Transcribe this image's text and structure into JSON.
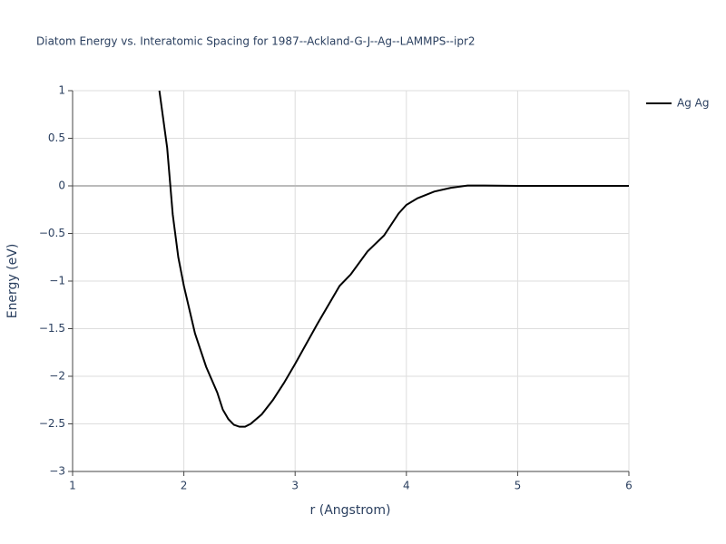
{
  "chart_data": {
    "type": "line",
    "title": "Diatom Energy vs. Interatomic Spacing for 1987--Ackland-G-J--Ag--LAMMPS--ipr2",
    "x_label": "r (Angstrom)",
    "y_label": "Energy (eV)",
    "x": [
      1.78,
      1.85,
      1.9,
      1.95,
      2.0,
      2.1,
      2.2,
      2.3,
      2.35,
      2.4,
      2.45,
      2.5,
      2.55,
      2.6,
      2.7,
      2.8,
      2.9,
      3.0,
      3.2,
      3.4,
      3.5,
      3.65,
      3.8,
      3.93,
      4.0,
      4.1,
      4.25,
      4.4,
      4.55,
      4.7,
      5.0,
      6.0
    ],
    "series": [
      {
        "name": "Ag Ag",
        "color": "#000000",
        "values": [
          1.0,
          0.4,
          -0.3,
          -0.75,
          -1.05,
          -1.55,
          -1.9,
          -2.17,
          -2.35,
          -2.45,
          -2.51,
          -2.53,
          -2.53,
          -2.5,
          -2.4,
          -2.25,
          -2.07,
          -1.87,
          -1.45,
          -1.05,
          -0.93,
          -0.69,
          -0.52,
          -0.29,
          -0.2,
          -0.13,
          -0.06,
          -0.02,
          0.003,
          0.003,
          0,
          0
        ]
      }
    ],
    "xlim": [
      1,
      6
    ],
    "xticks": [
      1,
      2,
      3,
      4,
      5,
      6
    ],
    "ylim": [
      -3,
      1
    ],
    "yticks": [
      {
        "value": -3,
        "label": "−3"
      },
      {
        "value": -2.5,
        "label": "−2.5"
      },
      {
        "value": -2,
        "label": "−2"
      },
      {
        "value": -1.5,
        "label": "−1.5"
      },
      {
        "value": -1,
        "label": "−1"
      },
      {
        "value": -0.5,
        "label": "−0.5"
      },
      0,
      0.5,
      1
    ],
    "grid": true,
    "legend": "right"
  }
}
